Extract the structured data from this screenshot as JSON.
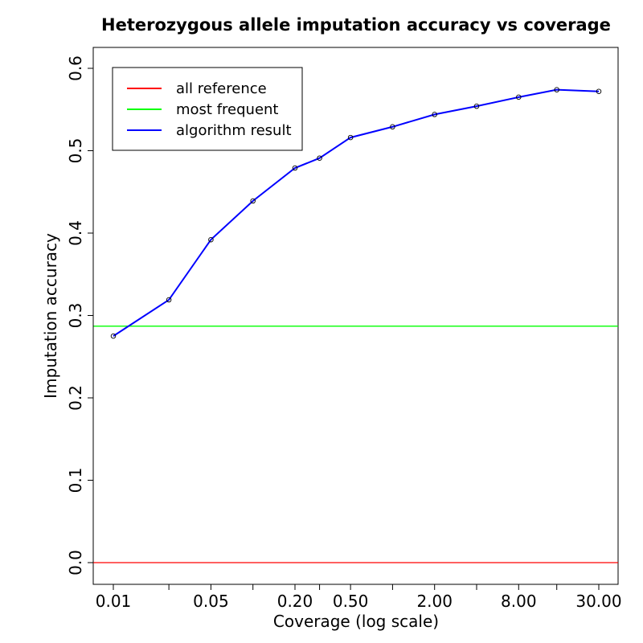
{
  "chart_data": {
    "type": "line",
    "title": "Heterozygous allele imputation accuracy vs coverage",
    "xlabel": "Coverage (log scale)",
    "ylabel": "Imputation accuracy",
    "xscale": "log",
    "xlim": [
      0.01,
      30
    ],
    "ylim": [
      0,
      0.6
    ],
    "x_ticks": [
      0.01,
      0.025,
      0.05,
      0.1,
      0.2,
      0.3,
      0.5,
      1,
      2,
      4,
      8,
      15,
      30
    ],
    "x_tick_labels": [
      "0.01",
      "",
      "0.05",
      "",
      "0.20",
      "",
      "0.50",
      "",
      "2.00",
      "",
      "8.00",
      "",
      "30.00"
    ],
    "y_ticks": [
      0,
      0.1,
      0.2,
      0.3,
      0.4,
      0.5,
      0.6
    ],
    "y_tick_labels": [
      "0.0",
      "0.1",
      "0.2",
      "0.3",
      "0.4",
      "0.5",
      "0.6"
    ],
    "grid": false,
    "legend_position": "top-left",
    "series": [
      {
        "name": "all reference",
        "color": "#ff0000",
        "style": "hline",
        "y": 0.0
      },
      {
        "name": "most frequent",
        "color": "#00ff00",
        "style": "hline",
        "y": 0.287
      },
      {
        "name": "algorithm result",
        "color": "#0000ff",
        "style": "line+points",
        "x": [
          0.01,
          0.025,
          0.05,
          0.1,
          0.2,
          0.3,
          0.5,
          1,
          2,
          4,
          8,
          15,
          30
        ],
        "y": [
          0.275,
          0.319,
          0.392,
          0.439,
          0.479,
          0.491,
          0.516,
          0.529,
          0.544,
          0.554,
          0.565,
          0.574,
          0.572
        ]
      }
    ]
  }
}
